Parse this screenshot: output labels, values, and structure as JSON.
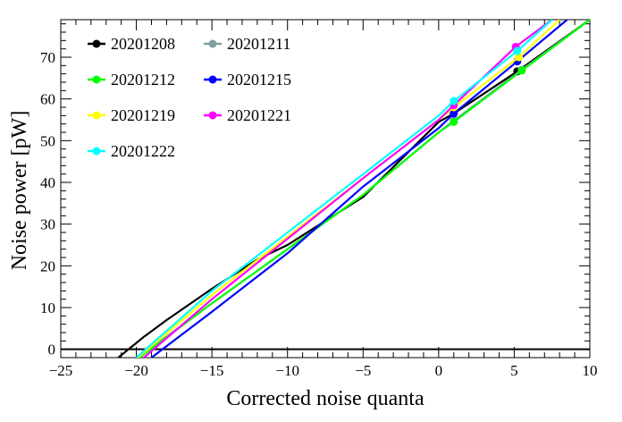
{
  "chart_data": {
    "type": "line",
    "title": "",
    "xlabel": "Corrected noise quanta",
    "ylabel": "Noise power [pW]",
    "xlim": [
      -25,
      10
    ],
    "ylim": [
      -2,
      79
    ],
    "x_ticks": [
      -25,
      -20,
      -15,
      -10,
      -5,
      0,
      5,
      10
    ],
    "y_ticks": [
      0,
      10,
      20,
      30,
      40,
      50,
      60,
      70
    ],
    "grid": false,
    "legend_position": "top-left",
    "reference_line": {
      "y": 0,
      "color": "#000000"
    },
    "series": [
      {
        "name": "20201208",
        "color": "#000000",
        "x": [
          -21.2,
          -19.5,
          -18,
          -15,
          -12,
          -10,
          -5,
          0,
          1,
          5.2,
          10
        ],
        "y": [
          -2,
          3,
          7,
          14.5,
          21.5,
          25,
          36.5,
          54.5,
          56.5,
          66.6,
          79
        ],
        "markers": [
          [
            1,
            56.5
          ],
          [
            5.2,
            66.6
          ]
        ]
      },
      {
        "name": "20201211",
        "color": "#7f9f9f",
        "x": [
          -19.9,
          -15,
          -10,
          -5,
          0,
          1,
          5.5,
          10
        ],
        "y": [
          -2,
          11,
          24,
          37,
          52,
          54.8,
          67,
          79
        ],
        "markers": [
          [
            1,
            54.8
          ],
          [
            5.5,
            67
          ]
        ]
      },
      {
        "name": "20201212",
        "color": "#00ff00",
        "x": [
          -19.8,
          -15,
          -10,
          -5,
          0,
          1,
          5.5,
          10
        ],
        "y": [
          -2,
          11,
          24,
          37,
          52,
          54.5,
          66.8,
          79
        ],
        "markers": [
          [
            1,
            54.5
          ],
          [
            5.5,
            66.8
          ]
        ]
      },
      {
        "name": "20201215",
        "color": "#0000ff",
        "x": [
          -19,
          -15,
          -10,
          -5,
          0,
          1,
          5.2,
          8.5
        ],
        "y": [
          -2,
          9,
          23,
          39,
          53,
          56.5,
          69,
          79
        ],
        "markers": [
          [
            1,
            56.5
          ],
          [
            5.2,
            69
          ]
        ]
      },
      {
        "name": "20201219",
        "color": "#ffff00",
        "x": [
          -19.9,
          -15,
          -10,
          -5,
          0,
          1,
          5.3,
          8
        ],
        "y": [
          -2,
          13,
          27,
          41,
          55,
          58,
          70,
          79
        ],
        "markers": [
          [
            1,
            58
          ],
          [
            5.3,
            70
          ]
        ]
      },
      {
        "name": "20201221",
        "color": "#ff00ff",
        "x": [
          -19.5,
          -15,
          -10,
          -5,
          0,
          1,
          5.1,
          7.5
        ],
        "y": [
          -2,
          12,
          26.5,
          41,
          55,
          58.5,
          72.5,
          79
        ],
        "markers": [
          [
            1,
            58.5
          ],
          [
            5.1,
            72.5
          ]
        ]
      },
      {
        "name": "20201222",
        "color": "#00ffff",
        "x": [
          -20,
          -15,
          -10,
          -5,
          0,
          1,
          5.2,
          7.5
        ],
        "y": [
          -2,
          14,
          28,
          42,
          56,
          59.5,
          71.5,
          79
        ],
        "markers": [
          [
            1,
            59.5
          ],
          [
            5.2,
            71.5
          ]
        ]
      }
    ]
  }
}
